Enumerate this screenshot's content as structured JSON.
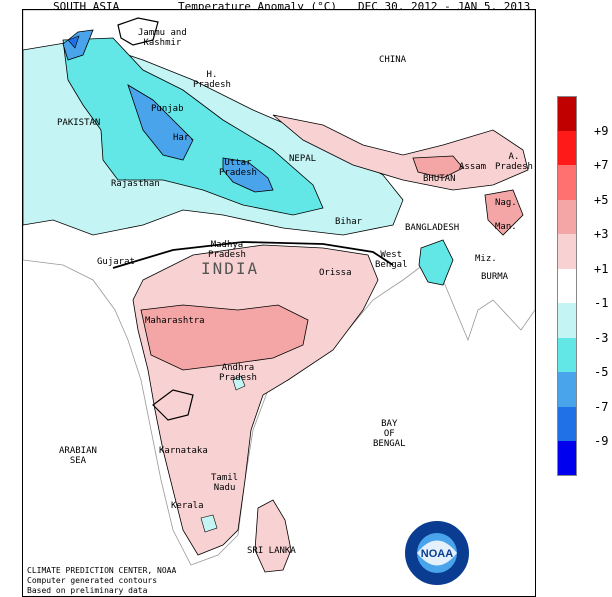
{
  "header": {
    "region": "SOUTH ASIA",
    "title": "Temperature Anomaly (°C)",
    "period": "DEC 30, 2012 - JAN  5, 2013"
  },
  "labels": {
    "jammu": "Jammu and\nKashmir",
    "china": "CHINA",
    "hpradesh": "H.\nPradesh",
    "pakistan": "PAKISTAN",
    "punjab": "Punjab",
    "haryana": "Har.",
    "uttar": "Uttar\nPradesh",
    "nepal": "NEPAL",
    "arunachal": "A.\nPradesh",
    "bhutan": "BHUTAN",
    "assam": "Assam",
    "rajasthan": "Rajasthan",
    "nagaland": "Nag.",
    "manipur": "Man.",
    "bihar": "Bihar",
    "bangladesh": "BANGLADESH",
    "gujarat": "Gujarat",
    "madhya": "Madhya\nPradesh",
    "india": "INDIA",
    "westbengal": "West\nBengal",
    "mizoram": "Miz.",
    "burma": "BURMA",
    "orissa": "Orissa",
    "maharashtra": "Maharashtra",
    "andhra": "Andhra\nPradesh",
    "arabian": "ARABIAN\nSEA",
    "karnataka": "Karnataka",
    "bay": "BAY\nOF\nBENGAL",
    "tamil": "Tamil\nNadu",
    "kerala": "Kerala",
    "srilanka": "SRI LANKA"
  },
  "credits": {
    "line1": "CLIMATE PREDICTION CENTER, NOAA",
    "line2": "Computer generated contours",
    "line3": "Based on preliminary data"
  },
  "logo": {
    "text": "NOAA"
  },
  "legend": {
    "title": "Temperature Anomaly (°C)",
    "colors": [
      "#c00000",
      "#ff1a1a",
      "#ff7070",
      "#f4a6a6",
      "#f8d2d2",
      "#ffffff",
      "#c4f4f4",
      "#62e6e6",
      "#4aa4ec",
      "#2070e8",
      "#0000ee"
    ],
    "ticks": [
      "+9",
      "+7",
      "+5",
      "+3",
      "+1",
      "-1",
      "-3",
      "-5",
      "-7",
      "-9"
    ],
    "bin_edges": [
      9,
      7,
      5,
      3,
      1,
      -1,
      -3,
      -5,
      -7,
      -9
    ]
  }
}
